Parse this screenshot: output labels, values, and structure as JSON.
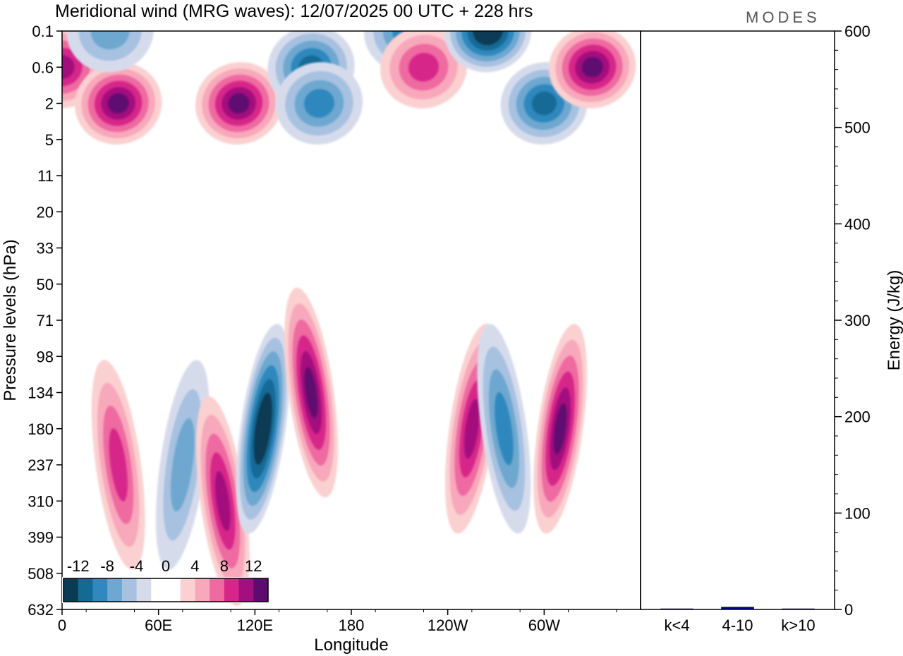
{
  "title": "Meridional wind (MRG waves):  12/07/2025  00 UTC  + 228 hrs",
  "logo": "MODES",
  "colors": {
    "levels": [
      "#0b3a55",
      "#136b95",
      "#2f88be",
      "#6ea7cf",
      "#a7c1e0",
      "#d6dbec",
      "#ffffff",
      "#ffffff",
      "#fbd0d0",
      "#f8a8bb",
      "#ee6aa0",
      "#d7258a",
      "#a30f7e",
      "#5e0b70"
    ],
    "energy_bar": "#00008b",
    "frame": "#000000"
  },
  "chart_data": [
    {
      "type": "heatmap",
      "title": "Meridional wind (MRG waves):  12/07/2025  00 UTC  + 228 hrs",
      "xlabel": "Longitude",
      "ylabel": "Pressure levels (hPa)",
      "x_ticks": [
        "0",
        "60E",
        "120E",
        "180",
        "120W",
        "60W"
      ],
      "y_ticks": [
        "0.1",
        "0.6",
        "2",
        "5",
        "11",
        "20",
        "33",
        "50",
        "71",
        "98",
        "134",
        "180",
        "237",
        "310",
        "399",
        "508",
        "632"
      ],
      "colorbar_labels": [
        "-12",
        "-8",
        "-4",
        "0",
        "4",
        "8",
        "12"
      ],
      "colorbar_levels": [
        -14,
        -12,
        -10,
        -8,
        -6,
        -4,
        -2,
        0,
        2,
        4,
        6,
        8,
        10,
        12,
        14
      ],
      "features": [
        {
          "lon": 0,
          "level": "0.6",
          "value": 10
        },
        {
          "lon": 35,
          "level": "2",
          "value": 12
        },
        {
          "lon": 30,
          "level": "0.1",
          "value": -6
        },
        {
          "lon": 110,
          "level": "2",
          "value": 12
        },
        {
          "lon": 155,
          "level": "0.6",
          "value": -10
        },
        {
          "lon": 160,
          "level": "2",
          "value": -8
        },
        {
          "lon": 215,
          "level": "0.1",
          "value": -8
        },
        {
          "lon": 225,
          "level": "0.6",
          "value": 8
        },
        {
          "lon": 265,
          "level": "0.1",
          "value": -14
        },
        {
          "lon": 300,
          "level": "2",
          "value": -10
        },
        {
          "lon": 330,
          "level": "0.6",
          "value": 12
        },
        {
          "lon": 35,
          "level": "237",
          "value": 8
        },
        {
          "lon": 75,
          "level": "237",
          "value": -6
        },
        {
          "lon": 100,
          "level": "310",
          "value": 10
        },
        {
          "lon": 125,
          "level": "180",
          "value": -14
        },
        {
          "lon": 155,
          "level": "134",
          "value": 12
        },
        {
          "lon": 255,
          "level": "180",
          "value": 10
        },
        {
          "lon": 275,
          "level": "180",
          "value": -8
        },
        {
          "lon": 310,
          "level": "180",
          "value": 12
        }
      ]
    },
    {
      "type": "bar",
      "ylabel": "Energy (J/kg)",
      "ylim": [
        0,
        600
      ],
      "y_ticks": [
        "0",
        "100",
        "200",
        "300",
        "400",
        "500",
        "600"
      ],
      "categories": [
        "k<4",
        "4-10",
        "k>10"
      ],
      "values": [
        0.4,
        2.5,
        0.2
      ]
    }
  ]
}
